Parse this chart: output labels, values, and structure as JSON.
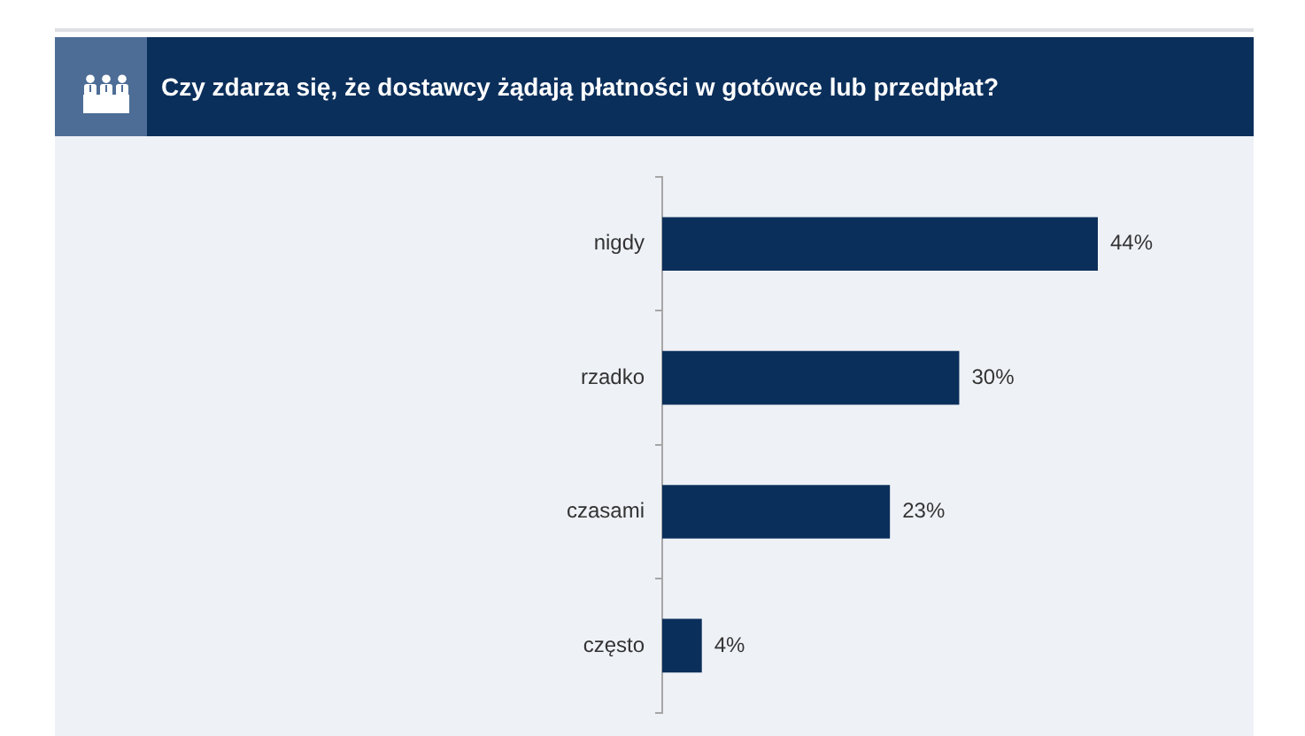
{
  "chart_data": {
    "type": "bar",
    "orientation": "horizontal",
    "title": "Czy zdarza się, że dostawcy żądają płatności w gotówce lub przedpłat?",
    "categories": [
      "nigdy",
      "rzadko",
      "czasami",
      "często"
    ],
    "values": [
      44,
      30,
      23,
      4
    ],
    "value_labels": [
      "44%",
      "30%",
      "23%",
      "4%"
    ],
    "color": "#0b2f5b",
    "tick_labels": "y"
  }
}
